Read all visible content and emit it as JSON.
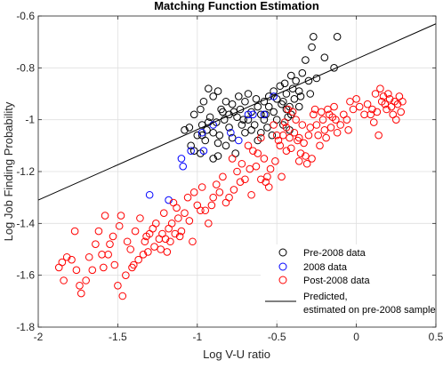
{
  "chart_data": {
    "type": "scatter",
    "title": "Matching Function Estimation",
    "xlabel": "Log V-U ratio",
    "ylabel": "Log Job Finding Probability",
    "xlim": [
      -2,
      0.5
    ],
    "ylim": [
      -1.8,
      -0.6
    ],
    "xticks": [
      -2,
      -1.5,
      -1,
      -0.5,
      0,
      0.5
    ],
    "xtick_labels": [
      "-2",
      "-1.5",
      "-1",
      "-0.5",
      "0",
      "0.5"
    ],
    "yticks": [
      -1.8,
      -1.6,
      -1.4,
      -1.2,
      -1,
      -0.8,
      -0.6
    ],
    "ytick_labels": [
      "-1.8",
      "-1.6",
      "-1.4",
      "-1.2",
      "-1",
      "-0.8",
      "-0.6"
    ],
    "grid": true,
    "legend_position": "bottom-right",
    "series": [
      {
        "name": "Pre-2008 data",
        "marker": "circle-open",
        "color": "#000000",
        "points": [
          [
            -0.27,
            -0.68
          ],
          [
            -0.12,
            -0.68
          ],
          [
            -0.28,
            -0.72
          ],
          [
            -0.2,
            -0.76
          ],
          [
            -0.32,
            -0.77
          ],
          [
            -0.14,
            -0.8
          ],
          [
            -0.41,
            -0.83
          ],
          [
            -0.34,
            -0.82
          ],
          [
            -0.38,
            -0.85
          ],
          [
            -0.3,
            -0.85
          ],
          [
            -0.25,
            -0.84
          ],
          [
            -0.45,
            -0.86
          ],
          [
            -0.4,
            -0.88
          ],
          [
            -0.36,
            -0.89
          ],
          [
            -0.48,
            -0.87
          ],
          [
            -0.52,
            -0.89
          ],
          [
            -0.44,
            -0.9
          ],
          [
            -0.29,
            -0.9
          ],
          [
            -0.55,
            -0.91
          ],
          [
            -0.5,
            -0.92
          ],
          [
            -0.46,
            -0.93
          ],
          [
            -0.35,
            -0.91
          ],
          [
            -0.58,
            -0.93
          ],
          [
            -0.63,
            -0.92
          ],
          [
            -0.68,
            -0.9
          ],
          [
            -0.74,
            -0.91
          ],
          [
            -0.7,
            -0.93
          ],
          [
            -0.62,
            -0.95
          ],
          [
            -0.55,
            -0.95
          ],
          [
            -0.47,
            -0.94
          ],
          [
            -0.39,
            -0.92
          ],
          [
            -0.42,
            -0.95
          ],
          [
            -0.87,
            -0.89
          ],
          [
            -0.93,
            -0.88
          ],
          [
            -0.9,
            -0.91
          ],
          [
            -0.96,
            -0.93
          ],
          [
            -0.82,
            -0.93
          ],
          [
            -0.78,
            -0.94
          ],
          [
            -0.73,
            -0.96
          ],
          [
            -0.66,
            -0.97
          ],
          [
            -0.6,
            -0.98
          ],
          [
            -0.52,
            -0.97
          ],
          [
            -0.44,
            -0.96
          ],
          [
            -0.36,
            -0.95
          ],
          [
            -0.85,
            -0.96
          ],
          [
            -0.8,
            -0.98
          ],
          [
            -0.75,
            -0.99
          ],
          [
            -0.68,
            -1.0
          ],
          [
            -0.58,
            -1.0
          ],
          [
            -0.5,
            -1.0
          ],
          [
            -0.43,
            -0.99
          ],
          [
            -0.98,
            -0.96
          ],
          [
            -1.02,
            -0.98
          ],
          [
            -0.92,
            -0.99
          ],
          [
            -0.88,
            -1.01
          ],
          [
            -0.83,
            -1.0
          ],
          [
            -0.72,
            -1.02
          ],
          [
            -0.64,
            -1.02
          ],
          [
            -0.56,
            -1.03
          ],
          [
            -0.46,
            -1.02
          ],
          [
            -1.08,
            -1.04
          ],
          [
            -1.05,
            -1.03
          ],
          [
            -0.97,
            -1.02
          ],
          [
            -0.94,
            -1.04
          ],
          [
            -0.9,
            -1.05
          ],
          [
            -0.86,
            -1.06
          ],
          [
            -0.8,
            -1.03
          ],
          [
            -0.7,
            -1.05
          ],
          [
            -0.6,
            -1.05
          ],
          [
            -0.53,
            -1.06
          ],
          [
            -0.42,
            -1.04
          ],
          [
            -1.0,
            -1.06
          ],
          [
            -0.95,
            -1.08
          ],
          [
            -0.87,
            -1.09
          ],
          [
            -0.78,
            -1.07
          ],
          [
            -0.62,
            -1.08
          ],
          [
            -1.04,
            -1.1
          ],
          [
            -0.98,
            -1.13
          ],
          [
            -0.9,
            -1.15
          ],
          [
            -1.02,
            -1.12
          ],
          [
            -0.82,
            -1.1
          ],
          [
            -0.76,
            -1.13
          ],
          [
            -0.71,
            -1.0
          ],
          [
            -0.66,
            -1.04
          ],
          [
            -0.84,
            -0.97
          ],
          [
            -0.77,
            -0.97
          ],
          [
            -0.97,
            -1.06
          ],
          [
            -0.93,
            -1.01
          ],
          [
            -0.87,
            -1.14
          ],
          [
            -0.41,
            -0.98
          ],
          [
            -0.57,
            -0.98
          ]
        ]
      },
      {
        "name": "2008 data",
        "marker": "circle-open",
        "color": "#0000ff",
        "points": [
          [
            -1.3,
            -1.29
          ],
          [
            -1.18,
            -1.31
          ],
          [
            -1.1,
            -1.15
          ],
          [
            -1.09,
            -1.18
          ],
          [
            -1.04,
            -1.12
          ],
          [
            -0.96,
            -1.12
          ],
          [
            -0.97,
            -1.05
          ],
          [
            -0.9,
            -1.02
          ],
          [
            -0.79,
            -1.05
          ],
          [
            -0.74,
            -1.08
          ],
          [
            -0.68,
            -0.98
          ],
          [
            -0.65,
            -0.98
          ],
          [
            -0.58,
            -0.98
          ],
          [
            -0.52,
            -0.91
          ]
        ]
      },
      {
        "name": "Post-2008 data",
        "marker": "circle-open",
        "color": "#ff0000",
        "points": [
          [
            -1.87,
            -1.57
          ],
          [
            -1.85,
            -1.55
          ],
          [
            -1.84,
            -1.62
          ],
          [
            -1.82,
            -1.53
          ],
          [
            -1.79,
            -1.54
          ],
          [
            -1.77,
            -1.43
          ],
          [
            -1.76,
            -1.58
          ],
          [
            -1.74,
            -1.64
          ],
          [
            -1.73,
            -1.67
          ],
          [
            -1.7,
            -1.62
          ],
          [
            -1.68,
            -1.53
          ],
          [
            -1.66,
            -1.58
          ],
          [
            -1.64,
            -1.48
          ],
          [
            -1.62,
            -1.43
          ],
          [
            -1.6,
            -1.52
          ],
          [
            -1.59,
            -1.57
          ],
          [
            -1.58,
            -1.37
          ],
          [
            -1.56,
            -1.52
          ],
          [
            -1.55,
            -1.48
          ],
          [
            -1.53,
            -1.45
          ],
          [
            -1.52,
            -1.56
          ],
          [
            -1.5,
            -1.64
          ],
          [
            -1.49,
            -1.41
          ],
          [
            -1.48,
            -1.37
          ],
          [
            -1.47,
            -1.68
          ],
          [
            -1.45,
            -1.6
          ],
          [
            -1.44,
            -1.47
          ],
          [
            -1.42,
            -1.5
          ],
          [
            -1.41,
            -1.57
          ],
          [
            -1.4,
            -1.56
          ],
          [
            -1.39,
            -1.43
          ],
          [
            -1.37,
            -1.54
          ],
          [
            -1.36,
            -1.38
          ],
          [
            -1.34,
            -1.52
          ],
          [
            -1.33,
            -1.47
          ],
          [
            -1.32,
            -1.45
          ],
          [
            -1.31,
            -1.51
          ],
          [
            -1.3,
            -1.44
          ],
          [
            -1.28,
            -1.42
          ],
          [
            -1.27,
            -1.49
          ],
          [
            -1.26,
            -1.4
          ],
          [
            -1.24,
            -1.46
          ],
          [
            -1.23,
            -1.5
          ],
          [
            -1.22,
            -1.44
          ],
          [
            -1.21,
            -1.36
          ],
          [
            -1.2,
            -1.46
          ],
          [
            -1.19,
            -1.51
          ],
          [
            -1.18,
            -1.42
          ],
          [
            -1.17,
            -1.47
          ],
          [
            -1.16,
            -1.4
          ],
          [
            -1.15,
            -1.32
          ],
          [
            -1.14,
            -1.44
          ],
          [
            -1.13,
            -1.34
          ],
          [
            -1.12,
            -1.38
          ],
          [
            -1.11,
            -1.45
          ],
          [
            -1.1,
            -1.43
          ],
          [
            -1.08,
            -1.36
          ],
          [
            -1.06,
            -1.3
          ],
          [
            -1.05,
            -1.39
          ],
          [
            -1.03,
            -1.47
          ],
          [
            -1.02,
            -1.28
          ],
          [
            -1.0,
            -1.33
          ],
          [
            -0.98,
            -1.35
          ],
          [
            -0.97,
            -1.26
          ],
          [
            -0.95,
            -1.35
          ],
          [
            -0.93,
            -1.4
          ],
          [
            -0.91,
            -1.33
          ],
          [
            -0.9,
            -1.3
          ],
          [
            -0.88,
            -1.25
          ],
          [
            -0.86,
            -1.28
          ],
          [
            -0.84,
            -1.22
          ],
          [
            -0.82,
            -1.32
          ],
          [
            -0.8,
            -1.3
          ],
          [
            -0.78,
            -1.15
          ],
          [
            -0.77,
            -1.27
          ],
          [
            -0.75,
            -1.2
          ],
          [
            -0.73,
            -1.24
          ],
          [
            -0.72,
            -1.17
          ],
          [
            -0.7,
            -1.23
          ],
          [
            -0.68,
            -1.1
          ],
          [
            -0.67,
            -1.19
          ],
          [
            -0.66,
            -1.29
          ],
          [
            -0.65,
            -1.12
          ],
          [
            -0.63,
            -1.18
          ],
          [
            -0.62,
            -1.13
          ],
          [
            -0.6,
            -1.23
          ],
          [
            -0.58,
            -1.15
          ],
          [
            -0.57,
            -1.24
          ],
          [
            -0.56,
            -1.22
          ],
          [
            -0.55,
            -1.26
          ],
          [
            -0.54,
            -1.19
          ],
          [
            -0.52,
            -1.02
          ],
          [
            -0.51,
            -1.16
          ],
          [
            -0.5,
            -1.06
          ],
          [
            -0.49,
            -1.08
          ],
          [
            -0.48,
            -1.1
          ],
          [
            -0.47,
            -1.22
          ],
          [
            -0.46,
            -1.06
          ],
          [
            -0.45,
            -1.01
          ],
          [
            -0.44,
            -1.03
          ],
          [
            -0.43,
            -0.96
          ],
          [
            -0.42,
            -1.07
          ],
          [
            -0.41,
            -1.11
          ],
          [
            -0.4,
            -0.97
          ],
          [
            -0.39,
            -1.05
          ],
          [
            -0.38,
            -1.0
          ],
          [
            -0.37,
            -1.08
          ],
          [
            -0.36,
            -1.07
          ],
          [
            -0.35,
            -1.13
          ],
          [
            -0.34,
            -1.02
          ],
          [
            -0.33,
            -1.09
          ],
          [
            -0.32,
            -1.14
          ],
          [
            -0.31,
            -1.17
          ],
          [
            -0.3,
            -1.06
          ],
          [
            -0.29,
            -1.03
          ],
          [
            -0.28,
            -1.15
          ],
          [
            -0.27,
            -0.98
          ],
          [
            -0.26,
            -0.96
          ],
          [
            -0.25,
            -1.02
          ],
          [
            -0.24,
            -1.06
          ],
          [
            -0.23,
            -1.1
          ],
          [
            -0.22,
            -0.97
          ],
          [
            -0.21,
            -1.0
          ],
          [
            -0.2,
            -1.04
          ],
          [
            -0.19,
            -1.07
          ],
          [
            -0.18,
            -0.96
          ],
          [
            -0.17,
            -0.98
          ],
          [
            -0.16,
            -1.03
          ],
          [
            -0.15,
            -0.99
          ],
          [
            -0.14,
            -0.95
          ],
          [
            -0.13,
            -1.0
          ],
          [
            -0.12,
            -1.05
          ],
          [
            -0.1,
            -1.02
          ],
          [
            -0.08,
            -0.98
          ],
          [
            -0.06,
            -1.0
          ],
          [
            -0.05,
            -1.04
          ],
          [
            -0.04,
            -0.93
          ],
          [
            -0.02,
            -0.96
          ],
          [
            0.0,
            -0.92
          ],
          [
            0.02,
            -0.95
          ],
          [
            0.05,
            -0.98
          ],
          [
            0.07,
            -0.94
          ],
          [
            0.1,
            -0.96
          ],
          [
            0.12,
            -0.9
          ],
          [
            0.13,
            -0.97
          ],
          [
            0.14,
            -1.06
          ],
          [
            0.15,
            -0.88
          ],
          [
            0.16,
            -0.93
          ],
          [
            0.17,
            -0.91
          ],
          [
            0.18,
            -0.94
          ],
          [
            0.19,
            -0.96
          ],
          [
            0.2,
            -0.9
          ],
          [
            0.21,
            -0.92
          ],
          [
            0.22,
            -0.95
          ],
          [
            0.23,
            -0.98
          ],
          [
            0.24,
            -0.93
          ],
          [
            0.25,
            -1.0
          ],
          [
            0.26,
            -0.94
          ],
          [
            0.27,
            -0.91
          ],
          [
            0.28,
            -0.97
          ],
          [
            0.29,
            -0.93
          ],
          [
            -0.44,
            -1.12
          ],
          [
            -0.6,
            -1.07
          ],
          [
            -0.36,
            -1.16
          ],
          [
            0.09,
            -0.98
          ],
          [
            0.11,
            -1.01
          ]
        ]
      },
      {
        "name": "Predicted, estimated on pre-2008 sample",
        "type": "line",
        "color": "#000000",
        "x": [
          -2,
          0.5
        ],
        "y": [
          -1.31,
          -0.63
        ]
      }
    ]
  }
}
